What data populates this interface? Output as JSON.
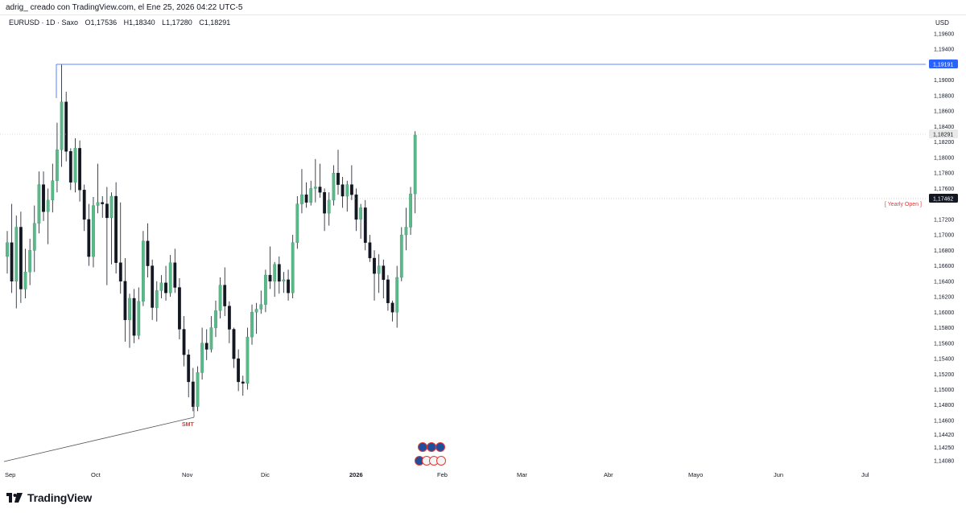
{
  "header": {
    "caption": "adrig_ creado con TradingView.com, el Ene 25, 2026 04:22 UTC-5"
  },
  "symbol_bar": {
    "symbol": "EURUSD · 1D · Saxo",
    "open": "O1,17536",
    "high": "H1,18340",
    "low": "L1,17280",
    "close": "C1,18291"
  },
  "price_axis": {
    "currency": "USD",
    "labels": [
      "1,19600",
      "1,19400",
      "1,19000",
      "1,18800",
      "1,18600",
      "1,18400",
      "1,18200",
      "1,18000",
      "1,17800",
      "1,17600",
      "1,17200",
      "1,17000",
      "1,16800",
      "1,16600",
      "1,16400",
      "1,16200",
      "1,16000",
      "1,15800",
      "1,15600",
      "1,15400",
      "1,15200",
      "1,15000",
      "1,14800",
      "1,14600",
      "1,14420",
      "1,14250",
      "1,14080"
    ],
    "tags": {
      "high_line": "1,19191",
      "last_price": "1,18291",
      "yearly_open": "1,17462"
    }
  },
  "time_axis": {
    "labels": [
      "Sep",
      "Oct",
      "Nov",
      "Dic",
      "2026",
      "Feb",
      "Mar",
      "Abr",
      "Mayo",
      "Jun",
      "Jul"
    ]
  },
  "annotations": {
    "yearly_open_label": "[ Yearly Open ]",
    "smt_label": "SMT"
  },
  "footer": {
    "brand": "TradingView"
  },
  "colors": {
    "up": "#5bb889",
    "down": "#131722",
    "accent_blue": "#2962ff",
    "annotation_red": "#e53935"
  },
  "chart_data": {
    "type": "candlestick",
    "symbol": "EURUSD",
    "interval": "1D",
    "ylim": [
      1.1408,
      1.1965
    ],
    "levels": {
      "high_line": 1.19191,
      "last_price": 1.18291,
      "yearly_open": 1.17462
    },
    "candles": [
      {
        "o": 1.1672,
        "h": 1.1705,
        "l": 1.165,
        "c": 1.169
      },
      {
        "o": 1.169,
        "h": 1.174,
        "l": 1.1625,
        "c": 1.164
      },
      {
        "o": 1.164,
        "h": 1.1725,
        "l": 1.1605,
        "c": 1.171
      },
      {
        "o": 1.171,
        "h": 1.173,
        "l": 1.1612,
        "c": 1.163
      },
      {
        "o": 1.163,
        "h": 1.1682,
        "l": 1.1618,
        "c": 1.1652
      },
      {
        "o": 1.1652,
        "h": 1.1695,
        "l": 1.1635,
        "c": 1.168
      },
      {
        "o": 1.168,
        "h": 1.1738,
        "l": 1.1652,
        "c": 1.1715
      },
      {
        "o": 1.1715,
        "h": 1.1782,
        "l": 1.1702,
        "c": 1.1765
      },
      {
        "o": 1.1765,
        "h": 1.1782,
        "l": 1.1718,
        "c": 1.173
      },
      {
        "o": 1.173,
        "h": 1.176,
        "l": 1.1688,
        "c": 1.1745
      },
      {
        "o": 1.1745,
        "h": 1.1792,
        "l": 1.1729,
        "c": 1.177
      },
      {
        "o": 1.177,
        "h": 1.1845,
        "l": 1.1755,
        "c": 1.181
      },
      {
        "o": 1.181,
        "h": 1.192,
        "l": 1.1788,
        "c": 1.1872
      },
      {
        "o": 1.1872,
        "h": 1.1885,
        "l": 1.1795,
        "c": 1.1808
      },
      {
        "o": 1.1808,
        "h": 1.1812,
        "l": 1.1758,
        "c": 1.1768
      },
      {
        "o": 1.1768,
        "h": 1.1825,
        "l": 1.1755,
        "c": 1.1812
      },
      {
        "o": 1.1812,
        "h": 1.1822,
        "l": 1.1743,
        "c": 1.1758
      },
      {
        "o": 1.1758,
        "h": 1.1765,
        "l": 1.1705,
        "c": 1.172
      },
      {
        "o": 1.172,
        "h": 1.174,
        "l": 1.166,
        "c": 1.1672
      },
      {
        "o": 1.1672,
        "h": 1.1749,
        "l": 1.1658,
        "c": 1.1738
      },
      {
        "o": 1.1738,
        "h": 1.1792,
        "l": 1.1728,
        "c": 1.1742
      },
      {
        "o": 1.1742,
        "h": 1.175,
        "l": 1.1722,
        "c": 1.174
      },
      {
        "o": 1.174,
        "h": 1.1762,
        "l": 1.1635,
        "c": 1.1722
      },
      {
        "o": 1.1722,
        "h": 1.1755,
        "l": 1.1662,
        "c": 1.175
      },
      {
        "o": 1.175,
        "h": 1.1768,
        "l": 1.165,
        "c": 1.1664
      },
      {
        "o": 1.1664,
        "h": 1.1742,
        "l": 1.1624,
        "c": 1.164
      },
      {
        "o": 1.164,
        "h": 1.167,
        "l": 1.1562,
        "c": 1.159
      },
      {
        "o": 1.159,
        "h": 1.1624,
        "l": 1.1554,
        "c": 1.1618
      },
      {
        "o": 1.1618,
        "h": 1.163,
        "l": 1.156,
        "c": 1.157
      },
      {
        "o": 1.157,
        "h": 1.1632,
        "l": 1.1565,
        "c": 1.1614
      },
      {
        "o": 1.1614,
        "h": 1.1705,
        "l": 1.1608,
        "c": 1.1692
      },
      {
        "o": 1.1692,
        "h": 1.1715,
        "l": 1.1645,
        "c": 1.166
      },
      {
        "o": 1.166,
        "h": 1.1668,
        "l": 1.159,
        "c": 1.1606
      },
      {
        "o": 1.1606,
        "h": 1.164,
        "l": 1.1588,
        "c": 1.1628
      },
      {
        "o": 1.1628,
        "h": 1.1648,
        "l": 1.1618,
        "c": 1.1638
      },
      {
        "o": 1.1638,
        "h": 1.166,
        "l": 1.1615,
        "c": 1.1625
      },
      {
        "o": 1.1625,
        "h": 1.1674,
        "l": 1.162,
        "c": 1.1664
      },
      {
        "o": 1.1664,
        "h": 1.1682,
        "l": 1.1625,
        "c": 1.1632
      },
      {
        "o": 1.1632,
        "h": 1.1644,
        "l": 1.1565,
        "c": 1.1578
      },
      {
        "o": 1.1578,
        "h": 1.1595,
        "l": 1.153,
        "c": 1.1545
      },
      {
        "o": 1.1545,
        "h": 1.1552,
        "l": 1.149,
        "c": 1.151
      },
      {
        "o": 1.151,
        "h": 1.1528,
        "l": 1.1472,
        "c": 1.1478
      },
      {
        "o": 1.1478,
        "h": 1.153,
        "l": 1.1472,
        "c": 1.1522
      },
      {
        "o": 1.1522,
        "h": 1.158,
        "l": 1.1513,
        "c": 1.156
      },
      {
        "o": 1.156,
        "h": 1.1578,
        "l": 1.1538,
        "c": 1.1552
      },
      {
        "o": 1.1552,
        "h": 1.1595,
        "l": 1.1548,
        "c": 1.158
      },
      {
        "o": 1.158,
        "h": 1.1615,
        "l": 1.1568,
        "c": 1.1602
      },
      {
        "o": 1.1602,
        "h": 1.1645,
        "l": 1.1592,
        "c": 1.1635
      },
      {
        "o": 1.1635,
        "h": 1.1658,
        "l": 1.1595,
        "c": 1.1608
      },
      {
        "o": 1.1608,
        "h": 1.1614,
        "l": 1.156,
        "c": 1.1578
      },
      {
        "o": 1.1578,
        "h": 1.158,
        "l": 1.1528,
        "c": 1.154
      },
      {
        "o": 1.154,
        "h": 1.1552,
        "l": 1.1498,
        "c": 1.151
      },
      {
        "o": 1.151,
        "h": 1.1518,
        "l": 1.1492,
        "c": 1.1508
      },
      {
        "o": 1.1508,
        "h": 1.158,
        "l": 1.15,
        "c": 1.1568
      },
      {
        "o": 1.1568,
        "h": 1.161,
        "l": 1.1558,
        "c": 1.16
      },
      {
        "o": 1.16,
        "h": 1.1612,
        "l": 1.1572,
        "c": 1.1604
      },
      {
        "o": 1.1604,
        "h": 1.1628,
        "l": 1.1598,
        "c": 1.161
      },
      {
        "o": 1.161,
        "h": 1.1655,
        "l": 1.16,
        "c": 1.1648
      },
      {
        "o": 1.1648,
        "h": 1.1685,
        "l": 1.163,
        "c": 1.164
      },
      {
        "o": 1.164,
        "h": 1.1665,
        "l": 1.162,
        "c": 1.1662
      },
      {
        "o": 1.1662,
        "h": 1.1672,
        "l": 1.1624,
        "c": 1.164
      },
      {
        "o": 1.164,
        "h": 1.1652,
        "l": 1.1625,
        "c": 1.1642
      },
      {
        "o": 1.1642,
        "h": 1.1655,
        "l": 1.1615,
        "c": 1.1625
      },
      {
        "o": 1.1625,
        "h": 1.17,
        "l": 1.1618,
        "c": 1.169
      },
      {
        "o": 1.169,
        "h": 1.175,
        "l": 1.1682,
        "c": 1.174
      },
      {
        "o": 1.174,
        "h": 1.1785,
        "l": 1.1728,
        "c": 1.1752
      },
      {
        "o": 1.1752,
        "h": 1.1768,
        "l": 1.1735,
        "c": 1.1742
      },
      {
        "o": 1.1742,
        "h": 1.177,
        "l": 1.1738,
        "c": 1.176
      },
      {
        "o": 1.176,
        "h": 1.1798,
        "l": 1.1742,
        "c": 1.1762
      },
      {
        "o": 1.1762,
        "h": 1.1792,
        "l": 1.1748,
        "c": 1.1755
      },
      {
        "o": 1.1755,
        "h": 1.176,
        "l": 1.1705,
        "c": 1.1728
      },
      {
        "o": 1.1728,
        "h": 1.1755,
        "l": 1.1712,
        "c": 1.1745
      },
      {
        "o": 1.1745,
        "h": 1.179,
        "l": 1.1738,
        "c": 1.178
      },
      {
        "o": 1.178,
        "h": 1.181,
        "l": 1.1752,
        "c": 1.1765
      },
      {
        "o": 1.1765,
        "h": 1.1775,
        "l": 1.1735,
        "c": 1.175
      },
      {
        "o": 1.175,
        "h": 1.177,
        "l": 1.173,
        "c": 1.1765
      },
      {
        "o": 1.1765,
        "h": 1.179,
        "l": 1.1745,
        "c": 1.1752
      },
      {
        "o": 1.1752,
        "h": 1.176,
        "l": 1.1705,
        "c": 1.172
      },
      {
        "o": 1.172,
        "h": 1.174,
        "l": 1.1695,
        "c": 1.1735
      },
      {
        "o": 1.1735,
        "h": 1.1745,
        "l": 1.168,
        "c": 1.169
      },
      {
        "o": 1.169,
        "h": 1.17,
        "l": 1.1665,
        "c": 1.167
      },
      {
        "o": 1.167,
        "h": 1.168,
        "l": 1.1615,
        "c": 1.165
      },
      {
        "o": 1.165,
        "h": 1.1675,
        "l": 1.1625,
        "c": 1.166
      },
      {
        "o": 1.166,
        "h": 1.1668,
        "l": 1.1618,
        "c": 1.1642
      },
      {
        "o": 1.1642,
        "h": 1.1648,
        "l": 1.1602,
        "c": 1.1612
      },
      {
        "o": 1.1612,
        "h": 1.1615,
        "l": 1.1588,
        "c": 1.16
      },
      {
        "o": 1.16,
        "h": 1.166,
        "l": 1.158,
        "c": 1.1645
      },
      {
        "o": 1.1645,
        "h": 1.171,
        "l": 1.164,
        "c": 1.17
      },
      {
        "o": 1.17,
        "h": 1.1735,
        "l": 1.168,
        "c": 1.171
      },
      {
        "o": 1.171,
        "h": 1.1762,
        "l": 1.17,
        "c": 1.1753
      },
      {
        "o": 1.1753,
        "h": 1.1834,
        "l": 1.1728,
        "c": 1.1829
      }
    ]
  }
}
